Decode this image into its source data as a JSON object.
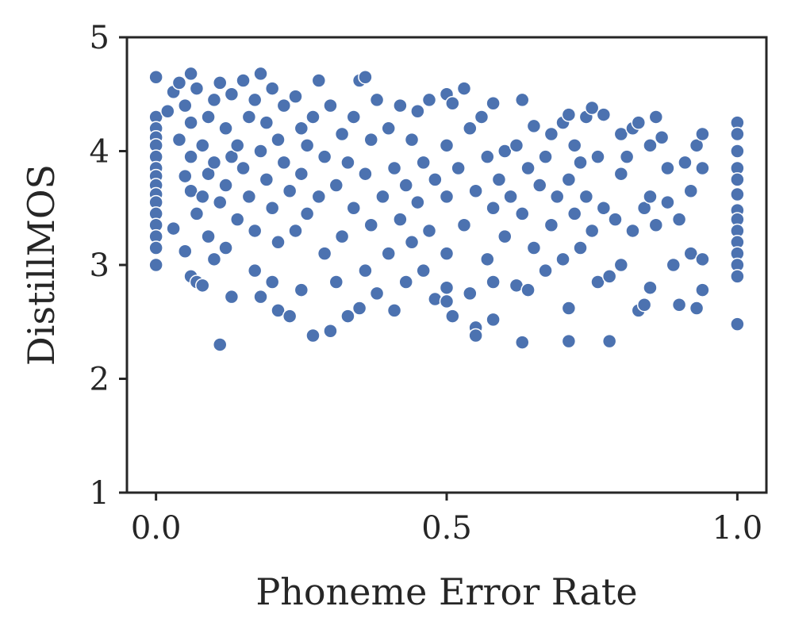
{
  "chart_data": {
    "type": "scatter",
    "title": "",
    "xlabel": "Phoneme Error Rate",
    "ylabel": "DistillMOS",
    "xlim": [
      -0.05,
      1.05
    ],
    "ylim": [
      1,
      5
    ],
    "xticks": [
      0.0,
      0.5,
      1.0
    ],
    "xtick_labels": [
      "0.0",
      "0.5",
      "1.0"
    ],
    "yticks": [
      1,
      2,
      3,
      4,
      5
    ],
    "ytick_labels": [
      "1",
      "2",
      "3",
      "4",
      "5"
    ],
    "grid": false,
    "legend": "none",
    "marker_color": "#4c72b0",
    "marker_edge_color": "#ffffff",
    "series": [
      {
        "values": [
          [
            0.0,
            4.65
          ],
          [
            0.0,
            4.3
          ],
          [
            0.0,
            4.2
          ],
          [
            0.0,
            4.12
          ],
          [
            0.0,
            4.05
          ],
          [
            0.0,
            3.95
          ],
          [
            0.0,
            3.85
          ],
          [
            0.0,
            3.78
          ],
          [
            0.0,
            3.7
          ],
          [
            0.0,
            3.62
          ],
          [
            0.0,
            3.55
          ],
          [
            0.0,
            3.45
          ],
          [
            0.0,
            3.35
          ],
          [
            0.0,
            3.25
          ],
          [
            0.0,
            3.15
          ],
          [
            0.0,
            3.0
          ],
          [
            0.02,
            4.35
          ],
          [
            0.03,
            4.52
          ],
          [
            0.03,
            3.32
          ],
          [
            0.04,
            4.6
          ],
          [
            0.04,
            4.1
          ],
          [
            0.05,
            3.78
          ],
          [
            0.05,
            4.4
          ],
          [
            0.05,
            3.12
          ],
          [
            0.06,
            4.68
          ],
          [
            0.06,
            4.25
          ],
          [
            0.06,
            3.95
          ],
          [
            0.06,
            3.65
          ],
          [
            0.06,
            2.9
          ],
          [
            0.07,
            2.85
          ],
          [
            0.07,
            4.55
          ],
          [
            0.07,
            3.45
          ],
          [
            0.08,
            4.05
          ],
          [
            0.08,
            3.6
          ],
          [
            0.08,
            2.82
          ],
          [
            0.09,
            4.3
          ],
          [
            0.09,
            3.8
          ],
          [
            0.09,
            3.25
          ],
          [
            0.1,
            4.45
          ],
          [
            0.1,
            3.9
          ],
          [
            0.1,
            3.05
          ],
          [
            0.11,
            4.6
          ],
          [
            0.11,
            3.55
          ],
          [
            0.11,
            2.3
          ],
          [
            0.12,
            4.2
          ],
          [
            0.12,
            3.7
          ],
          [
            0.12,
            3.15
          ],
          [
            0.13,
            4.5
          ],
          [
            0.13,
            3.95
          ],
          [
            0.13,
            2.72
          ],
          [
            0.14,
            4.05
          ],
          [
            0.14,
            3.4
          ],
          [
            0.15,
            4.62
          ],
          [
            0.15,
            3.85
          ],
          [
            0.16,
            4.3
          ],
          [
            0.16,
            3.6
          ],
          [
            0.17,
            4.45
          ],
          [
            0.17,
            3.3
          ],
          [
            0.17,
            2.95
          ],
          [
            0.18,
            4.68
          ],
          [
            0.18,
            4.0
          ],
          [
            0.18,
            2.72
          ],
          [
            0.19,
            3.75
          ],
          [
            0.19,
            4.25
          ],
          [
            0.2,
            4.55
          ],
          [
            0.2,
            3.5
          ],
          [
            0.2,
            2.85
          ],
          [
            0.21,
            4.1
          ],
          [
            0.21,
            3.2
          ],
          [
            0.21,
            2.6
          ],
          [
            0.22,
            3.9
          ],
          [
            0.22,
            4.4
          ],
          [
            0.23,
            3.65
          ],
          [
            0.23,
            2.55
          ],
          [
            0.24,
            4.48
          ],
          [
            0.24,
            3.3
          ],
          [
            0.25,
            4.2
          ],
          [
            0.25,
            3.8
          ],
          [
            0.25,
            2.78
          ],
          [
            0.26,
            4.05
          ],
          [
            0.26,
            3.45
          ],
          [
            0.27,
            4.3
          ],
          [
            0.27,
            2.38
          ],
          [
            0.28,
            3.6
          ],
          [
            0.28,
            4.62
          ],
          [
            0.29,
            3.95
          ],
          [
            0.29,
            3.1
          ],
          [
            0.3,
            4.4
          ],
          [
            0.3,
            2.42
          ],
          [
            0.31,
            3.7
          ],
          [
            0.31,
            2.85
          ],
          [
            0.32,
            4.15
          ],
          [
            0.32,
            3.25
          ],
          [
            0.33,
            3.9
          ],
          [
            0.33,
            2.55
          ],
          [
            0.34,
            4.3
          ],
          [
            0.34,
            3.5
          ],
          [
            0.35,
            4.62
          ],
          [
            0.35,
            2.62
          ],
          [
            0.36,
            4.65
          ],
          [
            0.36,
            3.8
          ],
          [
            0.36,
            2.95
          ],
          [
            0.37,
            4.1
          ],
          [
            0.37,
            3.35
          ],
          [
            0.38,
            4.45
          ],
          [
            0.38,
            2.75
          ],
          [
            0.39,
            3.6
          ],
          [
            0.4,
            4.2
          ],
          [
            0.4,
            3.1
          ],
          [
            0.41,
            3.85
          ],
          [
            0.41,
            2.6
          ],
          [
            0.42,
            4.4
          ],
          [
            0.42,
            3.4
          ],
          [
            0.43,
            3.7
          ],
          [
            0.43,
            2.85
          ],
          [
            0.44,
            4.1
          ],
          [
            0.44,
            3.2
          ],
          [
            0.45,
            4.35
          ],
          [
            0.45,
            3.55
          ],
          [
            0.46,
            3.9
          ],
          [
            0.46,
            2.95
          ],
          [
            0.47,
            4.45
          ],
          [
            0.47,
            3.3
          ],
          [
            0.48,
            3.75
          ],
          [
            0.48,
            2.7
          ],
          [
            0.5,
            4.5
          ],
          [
            0.5,
            4.05
          ],
          [
            0.5,
            3.6
          ],
          [
            0.5,
            3.1
          ],
          [
            0.5,
            2.8
          ],
          [
            0.5,
            2.68
          ],
          [
            0.51,
            4.42
          ],
          [
            0.51,
            2.55
          ],
          [
            0.52,
            3.85
          ],
          [
            0.53,
            4.55
          ],
          [
            0.53,
            3.35
          ],
          [
            0.54,
            4.2
          ],
          [
            0.54,
            2.75
          ],
          [
            0.55,
            3.65
          ],
          [
            0.55,
            2.45
          ],
          [
            0.55,
            2.38
          ],
          [
            0.56,
            4.3
          ],
          [
            0.57,
            3.95
          ],
          [
            0.57,
            3.05
          ],
          [
            0.58,
            4.42
          ],
          [
            0.58,
            3.5
          ],
          [
            0.58,
            2.85
          ],
          [
            0.58,
            2.52
          ],
          [
            0.59,
            3.75
          ],
          [
            0.6,
            4.0
          ],
          [
            0.6,
            3.25
          ],
          [
            0.61,
            3.6
          ],
          [
            0.62,
            4.05
          ],
          [
            0.62,
            2.82
          ],
          [
            0.63,
            4.45
          ],
          [
            0.63,
            3.45
          ],
          [
            0.63,
            2.32
          ],
          [
            0.64,
            3.85
          ],
          [
            0.64,
            2.78
          ],
          [
            0.65,
            4.22
          ],
          [
            0.65,
            3.15
          ],
          [
            0.66,
            3.7
          ],
          [
            0.67,
            3.95
          ],
          [
            0.67,
            2.95
          ],
          [
            0.68,
            4.15
          ],
          [
            0.68,
            3.35
          ],
          [
            0.69,
            3.6
          ],
          [
            0.7,
            4.25
          ],
          [
            0.7,
            3.05
          ],
          [
            0.71,
            4.32
          ],
          [
            0.71,
            3.75
          ],
          [
            0.71,
            2.62
          ],
          [
            0.71,
            2.33
          ],
          [
            0.72,
            3.45
          ],
          [
            0.72,
            4.05
          ],
          [
            0.73,
            3.9
          ],
          [
            0.73,
            3.15
          ],
          [
            0.74,
            4.3
          ],
          [
            0.74,
            3.6
          ],
          [
            0.75,
            4.38
          ],
          [
            0.75,
            3.3
          ],
          [
            0.76,
            3.95
          ],
          [
            0.76,
            2.85
          ],
          [
            0.77,
            4.32
          ],
          [
            0.77,
            3.5
          ],
          [
            0.78,
            2.9
          ],
          [
            0.78,
            2.33
          ],
          [
            0.79,
            3.4
          ],
          [
            0.8,
            4.15
          ],
          [
            0.8,
            3.8
          ],
          [
            0.8,
            3.0
          ],
          [
            0.81,
            3.95
          ],
          [
            0.82,
            4.2
          ],
          [
            0.82,
            3.3
          ],
          [
            0.83,
            4.25
          ],
          [
            0.83,
            2.6
          ],
          [
            0.84,
            3.5
          ],
          [
            0.84,
            2.65
          ],
          [
            0.85,
            4.05
          ],
          [
            0.85,
            3.6
          ],
          [
            0.85,
            2.8
          ],
          [
            0.86,
            4.3
          ],
          [
            0.86,
            3.35
          ],
          [
            0.87,
            4.12
          ],
          [
            0.88,
            3.55
          ],
          [
            0.88,
            3.85
          ],
          [
            0.89,
            3.0
          ],
          [
            0.9,
            3.4
          ],
          [
            0.9,
            2.65
          ],
          [
            0.91,
            3.9
          ],
          [
            0.92,
            3.65
          ],
          [
            0.92,
            3.1
          ],
          [
            0.93,
            4.05
          ],
          [
            0.93,
            2.62
          ],
          [
            0.94,
            4.15
          ],
          [
            0.94,
            3.85
          ],
          [
            0.94,
            3.05
          ],
          [
            0.94,
            2.78
          ],
          [
            1.0,
            4.25
          ],
          [
            1.0,
            4.15
          ],
          [
            1.0,
            4.0
          ],
          [
            1.0,
            3.85
          ],
          [
            1.0,
            3.75
          ],
          [
            1.0,
            3.62
          ],
          [
            1.0,
            3.48
          ],
          [
            1.0,
            3.4
          ],
          [
            1.0,
            3.3
          ],
          [
            1.0,
            3.2
          ],
          [
            1.0,
            3.1
          ],
          [
            1.0,
            3.0
          ],
          [
            1.0,
            2.9
          ],
          [
            1.0,
            2.48
          ]
        ]
      }
    ]
  }
}
